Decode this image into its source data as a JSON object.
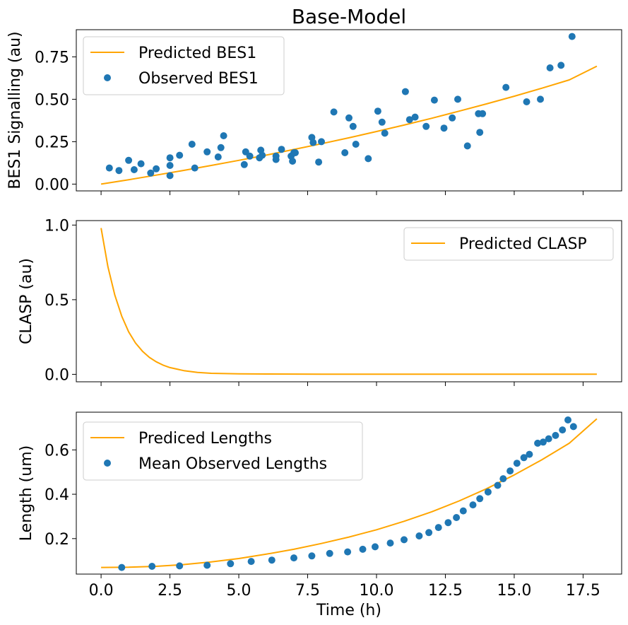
{
  "chart_data": [
    {
      "type": "scatter",
      "title": "Base-Model",
      "xlabel": "",
      "ylabel": "BES1 Signalling (au)",
      "xlim": [
        -0.9,
        18.9
      ],
      "ylim": [
        -0.04,
        0.91
      ],
      "xticks": [
        0,
        2.5,
        5,
        7.5,
        10,
        12.5,
        15,
        17.5
      ],
      "xtick_labels_shown": false,
      "yticks": [
        0.0,
        0.25,
        0.5,
        0.75
      ],
      "ytick_labels": [
        "0.00",
        "0.25",
        "0.50",
        "0.75"
      ],
      "legend_position": "upper-left",
      "series": [
        {
          "name": "Predicted BES1",
          "kind": "line",
          "color": "#ffa500",
          "x": [
            0,
            1,
            2,
            3,
            4,
            5,
            6,
            7,
            8,
            9,
            10,
            11,
            12,
            13,
            14,
            15,
            16,
            17,
            18
          ],
          "y": [
            0.0,
            0.026,
            0.053,
            0.081,
            0.11,
            0.14,
            0.171,
            0.204,
            0.238,
            0.273,
            0.31,
            0.348,
            0.388,
            0.43,
            0.473,
            0.518,
            0.565,
            0.614,
            0.695
          ]
        },
        {
          "name": "Observed BES1",
          "kind": "scatter",
          "color": "#1f77b4",
          "x": [
            0.3,
            0.65,
            1.0,
            1.2,
            1.45,
            1.8,
            2.0,
            2.5,
            2.5,
            2.5,
            2.85,
            3.3,
            3.4,
            3.85,
            4.25,
            4.35,
            4.45,
            5.2,
            5.25,
            5.4,
            5.75,
            5.8,
            5.85,
            6.35,
            6.35,
            6.55,
            6.9,
            6.95,
            7.0,
            7.05,
            7.65,
            7.7,
            7.9,
            8.0,
            8.45,
            8.85,
            9.0,
            9.15,
            9.25,
            9.7,
            10.05,
            10.2,
            10.3,
            11.05,
            11.2,
            11.4,
            11.8,
            12.1,
            12.45,
            12.75,
            12.95,
            13.3,
            13.7,
            13.75,
            13.85,
            14.7,
            15.45,
            15.95,
            16.3,
            16.7,
            17.1
          ],
          "y": [
            0.095,
            0.08,
            0.14,
            0.085,
            0.12,
            0.065,
            0.09,
            0.155,
            0.05,
            0.11,
            0.17,
            0.235,
            0.095,
            0.19,
            0.16,
            0.215,
            0.285,
            0.115,
            0.19,
            0.165,
            0.155,
            0.2,
            0.17,
            0.145,
            0.165,
            0.205,
            0.165,
            0.135,
            0.185,
            0.185,
            0.275,
            0.245,
            0.13,
            0.25,
            0.425,
            0.185,
            0.39,
            0.34,
            0.235,
            0.15,
            0.43,
            0.365,
            0.3,
            0.545,
            0.38,
            0.395,
            0.34,
            0.495,
            0.33,
            0.39,
            0.5,
            0.225,
            0.415,
            0.305,
            0.415,
            0.57,
            0.485,
            0.5,
            0.685,
            0.7,
            0.87
          ]
        }
      ]
    },
    {
      "type": "line",
      "title": "",
      "xlabel": "",
      "ylabel": "CLASP (au)",
      "xlim": [
        -0.9,
        18.9
      ],
      "ylim": [
        -0.05,
        1.03
      ],
      "xticks": [
        0,
        2.5,
        5,
        7.5,
        10,
        12.5,
        15,
        17.5
      ],
      "xtick_labels_shown": false,
      "yticks": [
        0.0,
        0.5,
        1.0
      ],
      "ytick_labels": [
        "0.0",
        "0.5",
        "1.0"
      ],
      "legend_position": "upper-right",
      "series": [
        {
          "name": "Predicted CLASP",
          "kind": "line",
          "color": "#ffa500",
          "x": [
            0,
            0.25,
            0.5,
            0.75,
            1.0,
            1.25,
            1.5,
            1.75,
            2.0,
            2.25,
            2.5,
            3.0,
            3.5,
            4.0,
            5.0,
            6.0,
            8.0,
            10.0,
            12.0,
            14.0,
            16.0,
            18.0
          ],
          "y": [
            0.98,
            0.72,
            0.53,
            0.39,
            0.285,
            0.21,
            0.155,
            0.114,
            0.084,
            0.062,
            0.045,
            0.025,
            0.013,
            0.007,
            0.003,
            0.002,
            0.001,
            0.001,
            0.001,
            0.001,
            0.001,
            0.001
          ]
        }
      ]
    },
    {
      "type": "scatter",
      "title": "",
      "xlabel": "Time (h)",
      "ylabel": "Length (um)",
      "xlim": [
        -0.9,
        18.9
      ],
      "ylim": [
        0.04,
        0.77
      ],
      "xticks": [
        0,
        2.5,
        5,
        7.5,
        10,
        12.5,
        15,
        17.5
      ],
      "xtick_labels": [
        "0.0",
        "2.5",
        "5.0",
        "7.5",
        "10.0",
        "12.5",
        "15.0",
        "17.5"
      ],
      "yticks": [
        0.2,
        0.4,
        0.6
      ],
      "ytick_labels": [
        "0.2",
        "0.4",
        "0.6"
      ],
      "legend_position": "upper-left",
      "series": [
        {
          "name": "Prediced Lengths",
          "kind": "line",
          "color": "#ffa500",
          "x": [
            0,
            1,
            2,
            3,
            4,
            5,
            6,
            7,
            8,
            9,
            10,
            11,
            12,
            13,
            14,
            15,
            16,
            17,
            18
          ],
          "y": [
            0.07,
            0.071,
            0.075,
            0.083,
            0.095,
            0.11,
            0.13,
            0.152,
            0.178,
            0.207,
            0.24,
            0.278,
            0.321,
            0.37,
            0.425,
            0.487,
            0.555,
            0.63,
            0.74
          ]
        },
        {
          "name": "Mean Observed Lengths",
          "kind": "scatter",
          "color": "#1f77b4",
          "x": [
            0.75,
            1.85,
            2.85,
            3.85,
            4.7,
            5.45,
            6.2,
            7.0,
            7.65,
            8.3,
            8.95,
            9.5,
            9.95,
            10.5,
            11.0,
            11.55,
            11.9,
            12.25,
            12.6,
            12.9,
            13.15,
            13.5,
            13.75,
            14.05,
            14.4,
            14.6,
            14.85,
            15.1,
            15.35,
            15.55,
            15.85,
            16.05,
            16.25,
            16.5,
            16.75,
            16.95,
            17.15
          ],
          "y": [
            0.07,
            0.075,
            0.077,
            0.08,
            0.087,
            0.097,
            0.103,
            0.113,
            0.122,
            0.133,
            0.14,
            0.152,
            0.163,
            0.18,
            0.195,
            0.212,
            0.227,
            0.25,
            0.272,
            0.295,
            0.325,
            0.352,
            0.38,
            0.41,
            0.44,
            0.47,
            0.505,
            0.54,
            0.565,
            0.58,
            0.63,
            0.635,
            0.65,
            0.665,
            0.69,
            0.735,
            0.705
          ]
        }
      ]
    }
  ]
}
